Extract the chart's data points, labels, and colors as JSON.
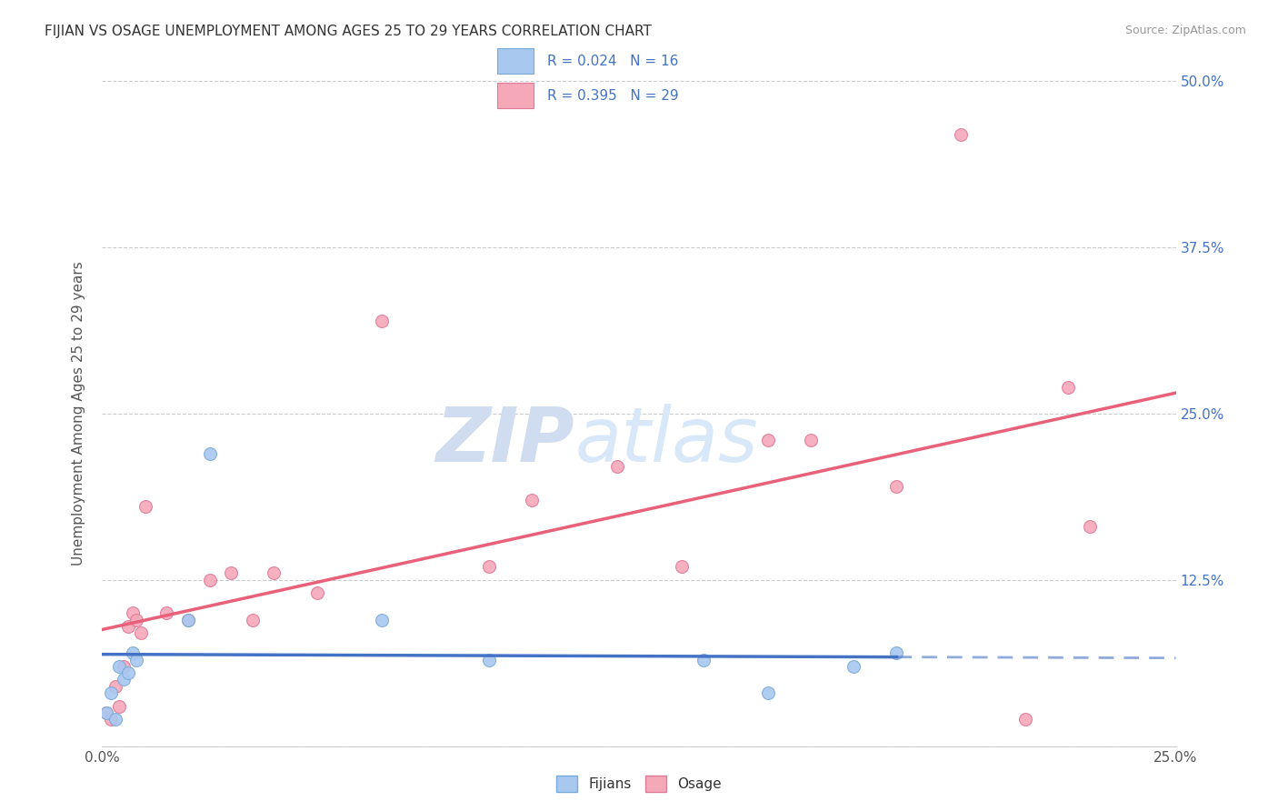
{
  "title": "FIJIAN VS OSAGE UNEMPLOYMENT AMONG AGES 25 TO 29 YEARS CORRELATION CHART",
  "source": "Source: ZipAtlas.com",
  "ylabel": "Unemployment Among Ages 25 to 29 years",
  "xmin": 0.0,
  "xmax": 0.25,
  "ymin": 0.0,
  "ymax": 0.5,
  "xticks": [
    0.0,
    0.05,
    0.1,
    0.15,
    0.2,
    0.25
  ],
  "yticks": [
    0.0,
    0.125,
    0.25,
    0.375,
    0.5
  ],
  "fijian_color": "#A8C8F0",
  "fijian_edge_color": "#7AAAD8",
  "osage_color": "#F5A8B8",
  "osage_edge_color": "#E07898",
  "fijian_line_color": "#4472C4",
  "osage_line_color": "#E8607A",
  "R_fijian": 0.024,
  "N_fijian": 16,
  "R_osage": 0.395,
  "N_osage": 29,
  "fijians_x": [
    0.001,
    0.002,
    0.003,
    0.004,
    0.005,
    0.006,
    0.007,
    0.008,
    0.02,
    0.025,
    0.065,
    0.09,
    0.14,
    0.155,
    0.175,
    0.185
  ],
  "fijians_y": [
    0.025,
    0.04,
    0.02,
    0.06,
    0.05,
    0.055,
    0.07,
    0.065,
    0.095,
    0.22,
    0.095,
    0.065,
    0.065,
    0.04,
    0.06,
    0.07
  ],
  "osage_x": [
    0.001,
    0.002,
    0.003,
    0.004,
    0.005,
    0.006,
    0.007,
    0.008,
    0.009,
    0.01,
    0.015,
    0.02,
    0.025,
    0.03,
    0.035,
    0.04,
    0.05,
    0.065,
    0.09,
    0.1,
    0.12,
    0.135,
    0.155,
    0.165,
    0.185,
    0.2,
    0.215,
    0.225,
    0.23
  ],
  "osage_y": [
    0.025,
    0.02,
    0.045,
    0.03,
    0.06,
    0.09,
    0.1,
    0.095,
    0.085,
    0.18,
    0.1,
    0.095,
    0.125,
    0.13,
    0.095,
    0.13,
    0.115,
    0.32,
    0.135,
    0.185,
    0.21,
    0.135,
    0.23,
    0.23,
    0.195,
    0.46,
    0.02,
    0.27,
    0.165
  ],
  "background_color": "#FFFFFF",
  "grid_color": "#CCCCCC",
  "watermark_zip": "ZIP",
  "watermark_atlas": "atlas",
  "marker_size": 100
}
